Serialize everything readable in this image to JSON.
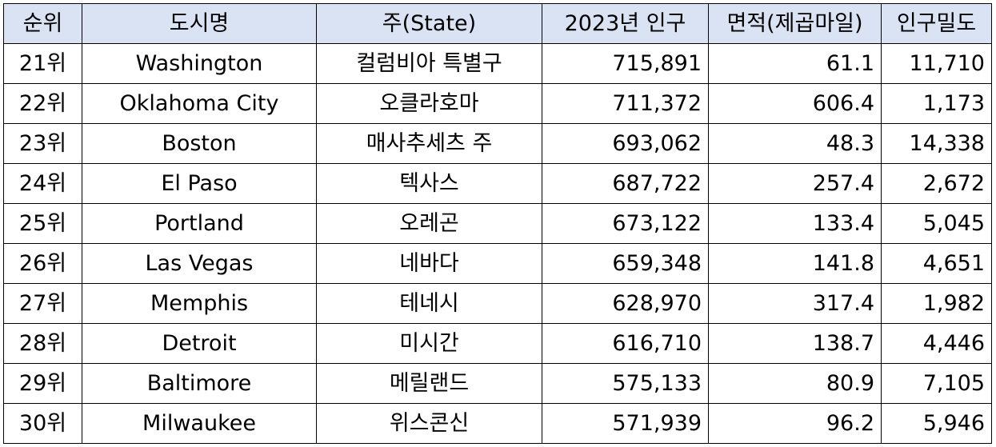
{
  "header": {
    "rank": "순위",
    "city": "도시명",
    "state": "주(State)",
    "population": "2023년 인구",
    "area": "면적(제곱마일)",
    "density": "인구밀도"
  },
  "rows": [
    {
      "rank": "21위",
      "city": "Washington",
      "state": "컬럼비아 특별구",
      "population": "715,891",
      "area": "61.1",
      "density": "11,710"
    },
    {
      "rank": "22위",
      "city": "Oklahoma City",
      "state": "오클라호마",
      "population": "711,372",
      "area": "606.4",
      "density": "1,173"
    },
    {
      "rank": "23위",
      "city": "Boston",
      "state": "매사추세츠 주",
      "population": "693,062",
      "area": "48.3",
      "density": "14,338"
    },
    {
      "rank": "24위",
      "city": "El Paso",
      "state": "텍사스",
      "population": "687,722",
      "area": "257.4",
      "density": "2,672"
    },
    {
      "rank": "25위",
      "city": "Portland",
      "state": "오레곤",
      "population": "673,122",
      "area": "133.4",
      "density": "5,045"
    },
    {
      "rank": "26위",
      "city": "Las Vegas",
      "state": "네바다",
      "population": "659,348",
      "area": "141.8",
      "density": "4,651"
    },
    {
      "rank": "27위",
      "city": "Memphis",
      "state": "테네시",
      "population": "628,970",
      "area": "317.4",
      "density": "1,982"
    },
    {
      "rank": "28위",
      "city": "Detroit",
      "state": "미시간",
      "population": "616,710",
      "area": "138.7",
      "density": "4,446"
    },
    {
      "rank": "29위",
      "city": "Baltimore",
      "state": "메릴랜드",
      "population": "575,133",
      "area": "80.9",
      "density": "7,105"
    },
    {
      "rank": "30위",
      "city": "Milwaukee",
      "state": "위스콘신",
      "population": "571,939",
      "area": "96.2",
      "density": "5,946"
    }
  ],
  "colors": {
    "header_bg": "#dae3f3",
    "border": "#000000"
  }
}
